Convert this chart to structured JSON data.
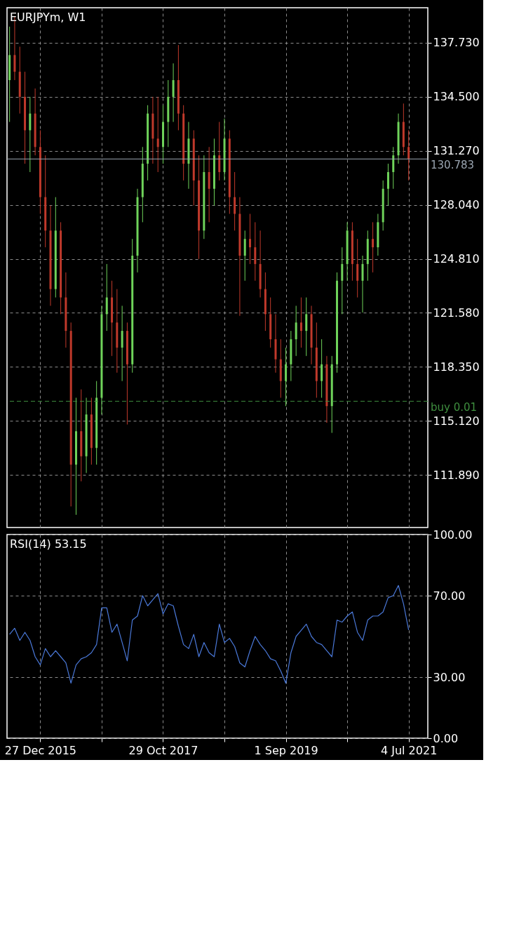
{
  "chart_data": [
    {
      "type": "candlestick",
      "title": "EURJPYm, W1",
      "x": [
        "2015-07-12",
        "2015-08-09",
        "2015-09-06",
        "2015-10-04",
        "2015-11-01",
        "2015-11-29",
        "2015-12-27",
        "2016-01-24",
        "2016-02-21",
        "2016-03-20",
        "2016-04-17",
        "2016-05-15",
        "2016-06-12",
        "2016-07-10",
        "2016-08-07",
        "2016-09-04",
        "2016-10-02",
        "2016-10-30",
        "2016-11-27",
        "2016-12-25",
        "2017-01-22",
        "2017-02-19",
        "2017-03-19",
        "2017-04-16",
        "2017-05-14",
        "2017-06-11",
        "2017-07-09",
        "2017-08-06",
        "2017-09-03",
        "2017-10-01",
        "2017-10-29",
        "2017-11-26",
        "2017-12-24",
        "2018-01-21",
        "2018-02-18",
        "2018-03-18",
        "2018-04-15",
        "2018-05-13",
        "2018-06-10",
        "2018-07-08",
        "2018-08-05",
        "2018-09-02",
        "2018-09-30",
        "2018-10-28",
        "2018-11-25",
        "2018-12-23",
        "2019-01-20",
        "2019-02-17",
        "2019-03-17",
        "2019-04-14",
        "2019-05-12",
        "2019-06-09",
        "2019-07-07",
        "2019-08-04",
        "2019-09-01",
        "2019-09-29",
        "2019-10-27",
        "2019-11-24",
        "2019-12-22",
        "2020-01-19",
        "2020-02-16",
        "2020-03-15",
        "2020-04-12",
        "2020-05-10",
        "2020-06-07",
        "2020-07-05",
        "2020-08-02",
        "2020-08-30",
        "2020-09-27",
        "2020-10-25",
        "2020-11-22",
        "2020-12-20",
        "2021-01-17",
        "2021-02-14",
        "2021-03-14",
        "2021-04-11",
        "2021-05-09",
        "2021-06-06",
        "2021-07-04"
      ],
      "ohlc": [
        [
          135.5,
          138.7,
          133.0,
          137.0
        ],
        [
          137.0,
          139.3,
          135.5,
          136.0
        ],
        [
          136.0,
          137.5,
          133.5,
          134.5
        ],
        [
          134.5,
          136.0,
          130.5,
          132.5
        ],
        [
          132.5,
          134.5,
          130.0,
          133.5
        ],
        [
          133.5,
          135.0,
          131.0,
          131.5
        ],
        [
          131.5,
          132.5,
          127.5,
          128.5
        ],
        [
          128.5,
          131.0,
          125.5,
          126.5
        ],
        [
          126.5,
          128.0,
          122.0,
          123.0
        ],
        [
          123.0,
          128.5,
          122.5,
          126.5
        ],
        [
          126.5,
          127.0,
          121.5,
          122.5
        ],
        [
          122.5,
          124.0,
          119.5,
          120.5
        ],
        [
          120.5,
          121.0,
          110.0,
          112.5
        ],
        [
          112.5,
          116.5,
          109.5,
          114.5
        ],
        [
          114.5,
          117.0,
          111.5,
          113.0
        ],
        [
          113.0,
          116.5,
          112.0,
          115.5
        ],
        [
          115.5,
          116.5,
          112.5,
          113.5
        ],
        [
          113.5,
          117.5,
          112.5,
          116.5
        ],
        [
          116.5,
          122.0,
          115.5,
          121.5
        ],
        [
          121.5,
          124.5,
          120.5,
          122.5
        ],
        [
          122.5,
          123.5,
          119.0,
          121.0
        ],
        [
          121.0,
          123.0,
          118.0,
          119.5
        ],
        [
          119.5,
          122.0,
          117.5,
          120.5
        ],
        [
          120.5,
          121.0,
          114.9,
          118.5
        ],
        [
          118.5,
          126.0,
          118.0,
          125.0
        ],
        [
          125.0,
          129.0,
          124.0,
          128.5
        ],
        [
          128.5,
          131.5,
          127.0,
          130.5
        ],
        [
          130.5,
          134.0,
          129.5,
          133.5
        ],
        [
          133.5,
          134.5,
          130.5,
          132.0
        ],
        [
          132.0,
          134.5,
          130.0,
          131.5
        ],
        [
          131.5,
          134.0,
          130.5,
          133.0
        ],
        [
          133.0,
          135.5,
          131.5,
          134.5
        ],
        [
          134.5,
          136.5,
          133.0,
          135.5
        ],
        [
          135.5,
          137.6,
          132.5,
          133.5
        ],
        [
          133.5,
          134.0,
          129.5,
          130.5
        ],
        [
          130.5,
          133.0,
          129.0,
          132.0
        ],
        [
          132.0,
          132.5,
          128.0,
          129.5
        ],
        [
          129.5,
          131.0,
          124.8,
          126.5
        ],
        [
          126.5,
          131.0,
          126.0,
          130.0
        ],
        [
          130.0,
          131.5,
          127.0,
          129.0
        ],
        [
          129.0,
          132.0,
          128.0,
          131.0
        ],
        [
          131.0,
          133.0,
          129.5,
          130.0
        ],
        [
          130.0,
          133.2,
          129.5,
          132.0
        ],
        [
          132.0,
          132.5,
          127.5,
          128.5
        ],
        [
          128.5,
          130.0,
          126.5,
          127.5
        ],
        [
          127.5,
          128.5,
          121.4,
          125.0
        ],
        [
          125.0,
          126.5,
          123.5,
          126.0
        ],
        [
          126.0,
          127.5,
          124.5,
          125.5
        ],
        [
          125.5,
          127.0,
          123.5,
          124.5
        ],
        [
          124.5,
          126.5,
          122.5,
          123.0
        ],
        [
          123.0,
          124.0,
          120.5,
          121.5
        ],
        [
          121.5,
          122.5,
          119.5,
          120.0
        ],
        [
          120.0,
          121.5,
          118.0,
          118.8
        ],
        [
          118.8,
          120.0,
          116.5,
          117.5
        ],
        [
          117.5,
          119.5,
          116.0,
          118.5
        ],
        [
          118.5,
          120.5,
          117.5,
          120.0
        ],
        [
          120.0,
          122.0,
          119.0,
          121.0
        ],
        [
          121.0,
          122.5,
          119.5,
          120.5
        ],
        [
          120.5,
          122.5,
          119.0,
          121.5
        ],
        [
          121.5,
          122.0,
          118.5,
          119.5
        ],
        [
          119.5,
          121.0,
          116.5,
          117.5
        ],
        [
          117.5,
          120.0,
          116.5,
          118.5
        ],
        [
          118.5,
          119.0,
          115.0,
          116.0
        ],
        [
          116.0,
          119.0,
          114.4,
          118.5
        ],
        [
          118.5,
          124.0,
          118.0,
          123.5
        ],
        [
          123.5,
          125.5,
          121.5,
          124.5
        ],
        [
          124.5,
          127.0,
          123.5,
          126.5
        ],
        [
          126.5,
          127.0,
          123.5,
          124.5
        ],
        [
          124.5,
          126.0,
          122.5,
          123.5
        ],
        [
          123.5,
          125.0,
          121.6,
          124.5
        ],
        [
          124.5,
          126.5,
          123.5,
          126.0
        ],
        [
          126.0,
          127.0,
          124.0,
          125.5
        ],
        [
          125.5,
          127.5,
          125.0,
          127.0
        ],
        [
          127.0,
          129.5,
          126.5,
          129.0
        ],
        [
          129.0,
          130.5,
          128.0,
          130.0
        ],
        [
          130.0,
          131.5,
          129.0,
          131.0
        ],
        [
          131.0,
          133.5,
          130.5,
          133.0
        ],
        [
          133.0,
          134.1,
          131.0,
          131.5
        ],
        [
          131.5,
          132.5,
          129.5,
          130.783
        ]
      ],
      "colors": [
        "#6fd35a",
        "#c0392b",
        "#c0392b",
        "#c0392b",
        "#6fd35a",
        "#c0392b",
        "#c0392b",
        "#c0392b",
        "#c0392b",
        "#6fd35a",
        "#c0392b",
        "#c0392b",
        "#c0392b",
        "#6fd35a",
        "#c0392b",
        "#6fd35a",
        "#c0392b",
        "#6fd35a",
        "#6fd35a",
        "#6fd35a",
        "#c0392b",
        "#c0392b",
        "#6fd35a",
        "#c0392b",
        "#6fd35a",
        "#6fd35a",
        "#6fd35a",
        "#6fd35a",
        "#c0392b",
        "#c0392b",
        "#6fd35a",
        "#6fd35a",
        "#6fd35a",
        "#c0392b",
        "#c0392b",
        "#6fd35a",
        "#c0392b",
        "#c0392b",
        "#6fd35a",
        "#c0392b",
        "#6fd35a",
        "#c0392b",
        "#6fd35a",
        "#c0392b",
        "#c0392b",
        "#c0392b",
        "#6fd35a",
        "#c0392b",
        "#c0392b",
        "#c0392b",
        "#c0392b",
        "#c0392b",
        "#c0392b",
        "#c0392b",
        "#6fd35a",
        "#6fd35a",
        "#6fd35a",
        "#c0392b",
        "#6fd35a",
        "#c0392b",
        "#c0392b",
        "#6fd35a",
        "#c0392b",
        "#6fd35a",
        "#6fd35a",
        "#6fd35a",
        "#6fd35a",
        "#c0392b",
        "#c0392b",
        "#6fd35a",
        "#6fd35a",
        "#c0392b",
        "#6fd35a",
        "#6fd35a",
        "#6fd35a",
        "#6fd35a",
        "#6fd35a",
        "#c0392b",
        "#c0392b"
      ],
      "xlim": [
        "2015-06-28",
        "2021-10-17"
      ],
      "xticks": [
        {
          "value": "2015-12-27",
          "label": null
        },
        {
          "value": "2016-11-27",
          "label": null
        },
        {
          "value": "2017-10-29",
          "label": null
        },
        {
          "value": "2018-09-30",
          "label": null
        },
        {
          "value": "2019-09-01",
          "label": null
        },
        {
          "value": "2020-08-02",
          "label": null
        },
        {
          "value": "2021-07-04",
          "label": null
        }
      ],
      "ylim": [
        108.74,
        139.83
      ],
      "yticks": [
        {
          "value": 111.89,
          "label": "111.890"
        },
        {
          "value": 115.12,
          "label": "115.120"
        },
        {
          "value": 118.35,
          "label": "118.350"
        },
        {
          "value": 121.58,
          "label": "121.580"
        },
        {
          "value": 124.81,
          "label": "124.810"
        },
        {
          "value": 128.04,
          "label": "128.040"
        },
        {
          "value": 131.27,
          "label": "131.270"
        },
        {
          "value": 134.5,
          "label": "134.500"
        },
        {
          "value": 137.73,
          "label": "137.730"
        }
      ],
      "grid": true,
      "tick_labels": "y",
      "ref_lines": [
        {
          "axis": "y",
          "value": 130.783,
          "label": "130.783",
          "color": "#9aa5b1",
          "line_style": "solid"
        },
        {
          "axis": "y",
          "value": 116.29,
          "label": "buy 0.01",
          "color": "#3f8f3f",
          "line_style": "dashed"
        }
      ]
    },
    {
      "type": "line",
      "title": "RSI(14) 53.15",
      "x": [
        "2015-07-12",
        "2015-08-09",
        "2015-09-06",
        "2015-10-04",
        "2015-11-01",
        "2015-11-29",
        "2015-12-27",
        "2016-01-24",
        "2016-02-21",
        "2016-03-20",
        "2016-04-17",
        "2016-05-15",
        "2016-06-12",
        "2016-07-10",
        "2016-08-07",
        "2016-09-04",
        "2016-10-02",
        "2016-10-30",
        "2016-11-27",
        "2016-12-25",
        "2017-01-22",
        "2017-02-19",
        "2017-03-19",
        "2017-04-16",
        "2017-05-14",
        "2017-06-11",
        "2017-07-09",
        "2017-08-06",
        "2017-09-03",
        "2017-10-01",
        "2017-10-29",
        "2017-11-26",
        "2017-12-24",
        "2018-01-21",
        "2018-02-18",
        "2018-03-18",
        "2018-04-15",
        "2018-05-13",
        "2018-06-10",
        "2018-07-08",
        "2018-08-05",
        "2018-09-02",
        "2018-09-30",
        "2018-10-28",
        "2018-11-25",
        "2018-12-23",
        "2019-01-20",
        "2019-02-17",
        "2019-03-17",
        "2019-04-14",
        "2019-05-12",
        "2019-06-09",
        "2019-07-07",
        "2019-08-04",
        "2019-09-01",
        "2019-09-29",
        "2019-10-27",
        "2019-11-24",
        "2019-12-22",
        "2020-01-19",
        "2020-02-16",
        "2020-03-15",
        "2020-04-12",
        "2020-05-10",
        "2020-06-07",
        "2020-07-05",
        "2020-08-02",
        "2020-08-30",
        "2020-09-27",
        "2020-10-25",
        "2020-11-22",
        "2020-12-20",
        "2021-01-17",
        "2021-02-14",
        "2021-03-14",
        "2021-04-11",
        "2021-05-09",
        "2021-06-06",
        "2021-07-04"
      ],
      "series": [
        {
          "color": "#4a78d8",
          "values": [
            51,
            54,
            48,
            52,
            48,
            40,
            36,
            44,
            40,
            43,
            40,
            37,
            27,
            36,
            39,
            40,
            42,
            46,
            64,
            64,
            52,
            56,
            47,
            38,
            58,
            60,
            70,
            65,
            68,
            71,
            61,
            66,
            65,
            55,
            46,
            44,
            51,
            40,
            47,
            42,
            40,
            56,
            47,
            49,
            45,
            37,
            35,
            43,
            50,
            46,
            43,
            39,
            38,
            33,
            27,
            42,
            50,
            53,
            56,
            50,
            47,
            46,
            43,
            40,
            58,
            57,
            60,
            62,
            52,
            48,
            58,
            60,
            60,
            62,
            69,
            70,
            75,
            66,
            53.15
          ]
        }
      ],
      "xlim": [
        "2015-06-28",
        "2021-10-17"
      ],
      "xticks": [
        {
          "value": "2015-12-27",
          "label": "27 Dec 2015"
        },
        {
          "value": "2016-11-27",
          "label": null
        },
        {
          "value": "2017-10-29",
          "label": "29 Oct 2017"
        },
        {
          "value": "2018-09-30",
          "label": null
        },
        {
          "value": "2019-09-01",
          "label": "1 Sep 2019"
        },
        {
          "value": "2020-08-02",
          "label": null
        },
        {
          "value": "2021-07-04",
          "label": "4 Jul 2021"
        }
      ],
      "ylim": [
        0,
        100
      ],
      "yticks": [
        {
          "value": 0,
          "label": "0.00"
        },
        {
          "value": 30,
          "label": "30.00"
        },
        {
          "value": 70,
          "label": "70.00"
        },
        {
          "value": 100,
          "label": "100.00"
        }
      ],
      "grid": true
    }
  ]
}
